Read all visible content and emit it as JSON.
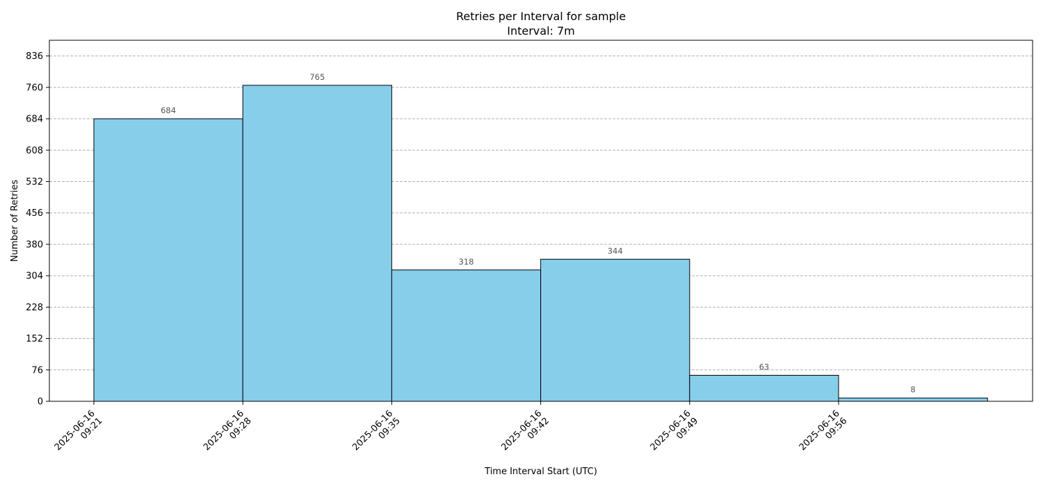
{
  "chart_data": {
    "type": "bar",
    "title": "Retries per Interval for sample",
    "subtitle": "Interval: 7m",
    "xlabel": "Time Interval Start (UTC)",
    "ylabel": "Number of Retries",
    "categories": [
      "2025-06-16 09:21",
      "2025-06-16 09:28",
      "2025-06-16 09:35",
      "2025-06-16 09:42",
      "2025-06-16 09:49",
      "2025-06-16 09:56"
    ],
    "x_tick_labels": [
      [
        "2025-06-16",
        "09:21"
      ],
      [
        "2025-06-16",
        "09:28"
      ],
      [
        "2025-06-16",
        "09:35"
      ],
      [
        "2025-06-16",
        "09:42"
      ],
      [
        "2025-06-16",
        "09:49"
      ],
      [
        "2025-06-16",
        "09:56"
      ]
    ],
    "values": [
      684,
      765,
      318,
      344,
      63,
      8
    ],
    "ylim": [
      0,
      874
    ],
    "yticks": [
      0,
      76,
      152,
      228,
      304,
      380,
      456,
      532,
      608,
      684,
      760,
      836
    ],
    "grid": "y-dashed",
    "bar_color": "#87CEEB",
    "edge_color": "#000000",
    "grid_color": "#b0b0b0"
  }
}
